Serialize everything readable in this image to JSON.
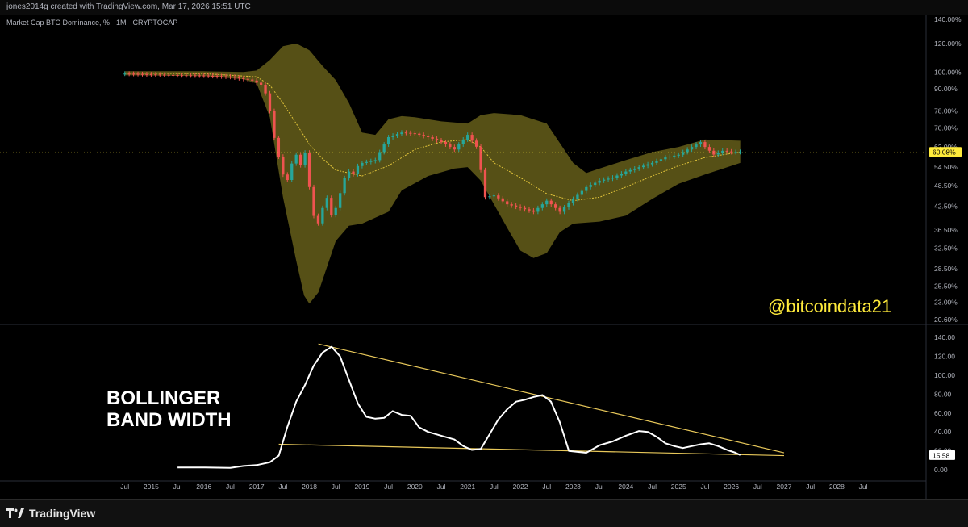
{
  "header": {
    "creator": "jones2014g created with TradingView.com, Mar 17, 2026 15:51 UTC"
  },
  "footer": {
    "brand": "TradingView",
    "logo_icon": "tradingview-logo-icon"
  },
  "chart_data": [
    {
      "type": "candlestick",
      "symbol_label": "Market Cap BTC Dominance, % · 1M · CRYPTOCAP",
      "watermark": "@bitcoindata21",
      "last_value_label": "60.08%",
      "last_value": 60.08,
      "y_scale": "log",
      "ylim": [
        20.6,
        140
      ],
      "y_ticks": [
        140,
        120,
        100,
        90,
        78,
        70,
        62,
        54.5,
        48.5,
        42.5,
        36.5,
        32.5,
        28.5,
        25.5,
        23,
        20.6
      ],
      "y_tick_labels": [
        "140.00%",
        "120.00%",
        "100.00%",
        "90.00%",
        "78.00%",
        "70.00%",
        "62.00%",
        "54.50%",
        "48.50%",
        "42.50%",
        "36.50%",
        "32.50%",
        "28.50%",
        "25.50%",
        "23.00%",
        "20.60%"
      ],
      "colors": {
        "up": "#26a69a",
        "down": "#ef5350",
        "band_fill": "#5b5417",
        "basis": "#e0c33a",
        "last_badge": "#ffeb3b"
      },
      "close": [
        {
          "t": 2014.5,
          "v": 99.0
        },
        {
          "t": 2015.0,
          "v": 98.5
        },
        {
          "t": 2015.5,
          "v": 98.0
        },
        {
          "t": 2016.0,
          "v": 97.8
        },
        {
          "t": 2016.5,
          "v": 97.0
        },
        {
          "t": 2016.9,
          "v": 95.0
        },
        {
          "t": 2017.1,
          "v": 92.0
        },
        {
          "t": 2017.2,
          "v": 85.0
        },
        {
          "t": 2017.25,
          "v": 78.0
        },
        {
          "t": 2017.33,
          "v": 66.0
        },
        {
          "t": 2017.42,
          "v": 58.0
        },
        {
          "t": 2017.5,
          "v": 52.0
        },
        {
          "t": 2017.58,
          "v": 50.0
        },
        {
          "t": 2017.67,
          "v": 56.0
        },
        {
          "t": 2017.75,
          "v": 59.0
        },
        {
          "t": 2017.83,
          "v": 55.0
        },
        {
          "t": 2017.92,
          "v": 60.0
        },
        {
          "t": 2018.0,
          "v": 48.0
        },
        {
          "t": 2018.08,
          "v": 40.0
        },
        {
          "t": 2018.17,
          "v": 38.0
        },
        {
          "t": 2018.25,
          "v": 42.0
        },
        {
          "t": 2018.33,
          "v": 45.0
        },
        {
          "t": 2018.42,
          "v": 40.0
        },
        {
          "t": 2018.5,
          "v": 42.0
        },
        {
          "t": 2018.58,
          "v": 46.0
        },
        {
          "t": 2018.67,
          "v": 51.0
        },
        {
          "t": 2018.75,
          "v": 53.0
        },
        {
          "t": 2018.83,
          "v": 52.0
        },
        {
          "t": 2018.92,
          "v": 55.0
        },
        {
          "t": 2019.0,
          "v": 56.0
        },
        {
          "t": 2019.25,
          "v": 57.0
        },
        {
          "t": 2019.5,
          "v": 66.0
        },
        {
          "t": 2019.75,
          "v": 68.0
        },
        {
          "t": 2020.0,
          "v": 67.5
        },
        {
          "t": 2020.25,
          "v": 66.0
        },
        {
          "t": 2020.5,
          "v": 64.0
        },
        {
          "t": 2020.75,
          "v": 61.0
        },
        {
          "t": 2021.0,
          "v": 67.0
        },
        {
          "t": 2021.17,
          "v": 62.0
        },
        {
          "t": 2021.33,
          "v": 45.0
        },
        {
          "t": 2021.5,
          "v": 45.5
        },
        {
          "t": 2021.75,
          "v": 43.0
        },
        {
          "t": 2022.0,
          "v": 42.0
        },
        {
          "t": 2022.25,
          "v": 41.0
        },
        {
          "t": 2022.5,
          "v": 44.0
        },
        {
          "t": 2022.75,
          "v": 41.0
        },
        {
          "t": 2023.0,
          "v": 44.5
        },
        {
          "t": 2023.25,
          "v": 48.0
        },
        {
          "t": 2023.5,
          "v": 50.0
        },
        {
          "t": 2023.75,
          "v": 51.0
        },
        {
          "t": 2024.0,
          "v": 53.0
        },
        {
          "t": 2024.25,
          "v": 54.5
        },
        {
          "t": 2024.5,
          "v": 56.0
        },
        {
          "t": 2024.75,
          "v": 58.0
        },
        {
          "t": 2025.0,
          "v": 59.0
        },
        {
          "t": 2025.25,
          "v": 62.0
        },
        {
          "t": 2025.42,
          "v": 64.0
        },
        {
          "t": 2025.5,
          "v": 62.0
        },
        {
          "t": 2025.67,
          "v": 59.0
        },
        {
          "t": 2025.83,
          "v": 60.5
        },
        {
          "t": 2026.0,
          "v": 60.0
        },
        {
          "t": 2026.17,
          "v": 60.08
        }
      ],
      "bollinger_upper": [
        {
          "t": 2014.5,
          "v": 100.5
        },
        {
          "t": 2016.0,
          "v": 100.5
        },
        {
          "t": 2016.75,
          "v": 100.0
        },
        {
          "t": 2017.0,
          "v": 101.0
        },
        {
          "t": 2017.25,
          "v": 108.0
        },
        {
          "t": 2017.5,
          "v": 118.0
        },
        {
          "t": 2017.75,
          "v": 120.0
        },
        {
          "t": 2018.0,
          "v": 115.0
        },
        {
          "t": 2018.25,
          "v": 104.0
        },
        {
          "t": 2018.5,
          "v": 95.0
        },
        {
          "t": 2018.75,
          "v": 82.0
        },
        {
          "t": 2019.0,
          "v": 68.0
        },
        {
          "t": 2019.25,
          "v": 67.0
        },
        {
          "t": 2019.5,
          "v": 74.0
        },
        {
          "t": 2019.75,
          "v": 75.5
        },
        {
          "t": 2020.0,
          "v": 75.0
        },
        {
          "t": 2020.5,
          "v": 73.0
        },
        {
          "t": 2021.0,
          "v": 72.0
        },
        {
          "t": 2021.25,
          "v": 76.0
        },
        {
          "t": 2021.5,
          "v": 77.0
        },
        {
          "t": 2022.0,
          "v": 76.0
        },
        {
          "t": 2022.5,
          "v": 72.0
        },
        {
          "t": 2023.0,
          "v": 56.0
        },
        {
          "t": 2023.25,
          "v": 52.5
        },
        {
          "t": 2023.5,
          "v": 54.0
        },
        {
          "t": 2024.0,
          "v": 57.0
        },
        {
          "t": 2024.5,
          "v": 60.0
        },
        {
          "t": 2025.0,
          "v": 62.0
        },
        {
          "t": 2025.5,
          "v": 65.0
        },
        {
          "t": 2026.17,
          "v": 64.5
        }
      ],
      "bollinger_lower": [
        {
          "t": 2014.5,
          "v": 98.0
        },
        {
          "t": 2016.0,
          "v": 97.5
        },
        {
          "t": 2016.75,
          "v": 95.5
        },
        {
          "t": 2017.0,
          "v": 93.0
        },
        {
          "t": 2017.25,
          "v": 75.0
        },
        {
          "t": 2017.5,
          "v": 45.0
        },
        {
          "t": 2017.75,
          "v": 30.0
        },
        {
          "t": 2017.9,
          "v": 24.0
        },
        {
          "t": 2018.0,
          "v": 22.8
        },
        {
          "t": 2018.17,
          "v": 24.5
        },
        {
          "t": 2018.5,
          "v": 34.0
        },
        {
          "t": 2018.75,
          "v": 37.5
        },
        {
          "t": 2019.0,
          "v": 38.0
        },
        {
          "t": 2019.5,
          "v": 41.0
        },
        {
          "t": 2019.75,
          "v": 47.0
        },
        {
          "t": 2020.25,
          "v": 51.5
        },
        {
          "t": 2020.75,
          "v": 54.0
        },
        {
          "t": 2021.0,
          "v": 54.5
        },
        {
          "t": 2021.25,
          "v": 50.0
        },
        {
          "t": 2021.75,
          "v": 37.0
        },
        {
          "t": 2022.0,
          "v": 32.0
        },
        {
          "t": 2022.25,
          "v": 30.5
        },
        {
          "t": 2022.5,
          "v": 31.5
        },
        {
          "t": 2022.75,
          "v": 36.0
        },
        {
          "t": 2023.0,
          "v": 38.0
        },
        {
          "t": 2023.5,
          "v": 38.5
        },
        {
          "t": 2024.0,
          "v": 40.0
        },
        {
          "t": 2024.5,
          "v": 44.5
        },
        {
          "t": 2025.0,
          "v": 49.0
        },
        {
          "t": 2025.5,
          "v": 52.0
        },
        {
          "t": 2026.17,
          "v": 56.0
        }
      ],
      "bollinger_basis": [
        {
          "t": 2014.5,
          "v": 99.3
        },
        {
          "t": 2016.0,
          "v": 99.0
        },
        {
          "t": 2017.0,
          "v": 97.0
        },
        {
          "t": 2017.25,
          "v": 92.0
        },
        {
          "t": 2017.5,
          "v": 82.0
        },
        {
          "t": 2017.75,
          "v": 72.0
        },
        {
          "t": 2018.0,
          "v": 63.0
        },
        {
          "t": 2018.25,
          "v": 57.5
        },
        {
          "t": 2018.5,
          "v": 53.5
        },
        {
          "t": 2018.75,
          "v": 52.5
        },
        {
          "t": 2019.0,
          "v": 51.5
        },
        {
          "t": 2019.5,
          "v": 55.0
        },
        {
          "t": 2020.0,
          "v": 61.0
        },
        {
          "t": 2020.5,
          "v": 64.0
        },
        {
          "t": 2021.0,
          "v": 65.0
        },
        {
          "t": 2021.25,
          "v": 62.0
        },
        {
          "t": 2021.5,
          "v": 56.0
        },
        {
          "t": 2022.0,
          "v": 51.0
        },
        {
          "t": 2022.5,
          "v": 46.0
        },
        {
          "t": 2023.0,
          "v": 44.0
        },
        {
          "t": 2023.5,
          "v": 45.0
        },
        {
          "t": 2024.0,
          "v": 48.0
        },
        {
          "t": 2024.5,
          "v": 51.5
        },
        {
          "t": 2025.0,
          "v": 55.0
        },
        {
          "t": 2025.5,
          "v": 58.0
        },
        {
          "t": 2026.17,
          "v": 60.0
        }
      ]
    },
    {
      "type": "line",
      "title": "BOLLINGER\nBAND WIDTH",
      "last_value_label": "15.58",
      "last_value": 15.58,
      "ylim": [
        -5,
        140
      ],
      "y_ticks": [
        140,
        120,
        100,
        80,
        60,
        40,
        20,
        0
      ],
      "y_tick_labels": [
        "140.00",
        "120.00",
        "100.00",
        "80.00",
        "60.00",
        "40.00",
        "20.00",
        "0.00"
      ],
      "colors": {
        "line": "#ffffff",
        "trendline": "#e8c85a"
      },
      "series": [
        {
          "t": 2015.5,
          "v": 2.5
        },
        {
          "t": 2016.0,
          "v": 2.5
        },
        {
          "t": 2016.5,
          "v": 2.0
        },
        {
          "t": 2016.75,
          "v": 4.0
        },
        {
          "t": 2017.0,
          "v": 5.0
        },
        {
          "t": 2017.25,
          "v": 8.0
        },
        {
          "t": 2017.42,
          "v": 15.0
        },
        {
          "t": 2017.58,
          "v": 45.0
        },
        {
          "t": 2017.75,
          "v": 72.0
        },
        {
          "t": 2017.92,
          "v": 90.0
        },
        {
          "t": 2018.08,
          "v": 110.0
        },
        {
          "t": 2018.25,
          "v": 124.0
        },
        {
          "t": 2018.42,
          "v": 130.0
        },
        {
          "t": 2018.58,
          "v": 120.0
        },
        {
          "t": 2018.75,
          "v": 95.0
        },
        {
          "t": 2018.92,
          "v": 70.0
        },
        {
          "t": 2019.08,
          "v": 56.0
        },
        {
          "t": 2019.25,
          "v": 54.0
        },
        {
          "t": 2019.42,
          "v": 55.0
        },
        {
          "t": 2019.58,
          "v": 62.0
        },
        {
          "t": 2019.75,
          "v": 58.0
        },
        {
          "t": 2019.92,
          "v": 57.0
        },
        {
          "t": 2020.08,
          "v": 45.0
        },
        {
          "t": 2020.25,
          "v": 40.0
        },
        {
          "t": 2020.5,
          "v": 36.0
        },
        {
          "t": 2020.75,
          "v": 32.0
        },
        {
          "t": 2020.92,
          "v": 25.0
        },
        {
          "t": 2021.08,
          "v": 21.0
        },
        {
          "t": 2021.25,
          "v": 22.0
        },
        {
          "t": 2021.42,
          "v": 38.0
        },
        {
          "t": 2021.58,
          "v": 53.0
        },
        {
          "t": 2021.75,
          "v": 64.0
        },
        {
          "t": 2021.92,
          "v": 72.0
        },
        {
          "t": 2022.08,
          "v": 74.0
        },
        {
          "t": 2022.25,
          "v": 77.0
        },
        {
          "t": 2022.42,
          "v": 79.0
        },
        {
          "t": 2022.58,
          "v": 72.0
        },
        {
          "t": 2022.75,
          "v": 50.0
        },
        {
          "t": 2022.92,
          "v": 20.0
        },
        {
          "t": 2023.08,
          "v": 19.0
        },
        {
          "t": 2023.25,
          "v": 18.0
        },
        {
          "t": 2023.5,
          "v": 26.0
        },
        {
          "t": 2023.75,
          "v": 30.0
        },
        {
          "t": 2024.0,
          "v": 36.0
        },
        {
          "t": 2024.25,
          "v": 41.0
        },
        {
          "t": 2024.42,
          "v": 40.0
        },
        {
          "t": 2024.58,
          "v": 35.0
        },
        {
          "t": 2024.75,
          "v": 28.0
        },
        {
          "t": 2024.92,
          "v": 25.0
        },
        {
          "t": 2025.08,
          "v": 23.0
        },
        {
          "t": 2025.25,
          "v": 25.0
        },
        {
          "t": 2025.42,
          "v": 27.0
        },
        {
          "t": 2025.58,
          "v": 28.0
        },
        {
          "t": 2025.75,
          "v": 25.0
        },
        {
          "t": 2025.92,
          "v": 21.0
        },
        {
          "t": 2026.08,
          "v": 18.0
        },
        {
          "t": 2026.17,
          "v": 15.58
        }
      ],
      "trendlines": [
        {
          "from": {
            "t": 2018.17,
            "v": 133.0
          },
          "to": {
            "t": 2027.0,
            "v": 18.0
          }
        },
        {
          "from": {
            "t": 2017.42,
            "v": 27.0
          },
          "to": {
            "t": 2027.0,
            "v": 15.0
          }
        }
      ]
    }
  ],
  "x_axis": {
    "range": [
      2014.0,
      2029.6
    ],
    "ticks": [
      {
        "t": 2014.5,
        "label": "Jul"
      },
      {
        "t": 2015.0,
        "label": "2015"
      },
      {
        "t": 2015.5,
        "label": "Jul"
      },
      {
        "t": 2016.0,
        "label": "2016"
      },
      {
        "t": 2016.5,
        "label": "Jul"
      },
      {
        "t": 2017.0,
        "label": "2017"
      },
      {
        "t": 2017.5,
        "label": "Jul"
      },
      {
        "t": 2018.0,
        "label": "2018"
      },
      {
        "t": 2018.5,
        "label": "Jul"
      },
      {
        "t": 2019.0,
        "label": "2019"
      },
      {
        "t": 2019.5,
        "label": "Jul"
      },
      {
        "t": 2020.0,
        "label": "2020"
      },
      {
        "t": 2020.5,
        "label": "Jul"
      },
      {
        "t": 2021.0,
        "label": "2021"
      },
      {
        "t": 2021.5,
        "label": "Jul"
      },
      {
        "t": 2022.0,
        "label": "2022"
      },
      {
        "t": 2022.5,
        "label": "Jul"
      },
      {
        "t": 2023.0,
        "label": "2023"
      },
      {
        "t": 2023.5,
        "label": "Jul"
      },
      {
        "t": 2024.0,
        "label": "2024"
      },
      {
        "t": 2024.5,
        "label": "Jul"
      },
      {
        "t": 2025.0,
        "label": "2025"
      },
      {
        "t": 2025.5,
        "label": "Jul"
      },
      {
        "t": 2026.0,
        "label": "2026"
      },
      {
        "t": 2026.5,
        "label": "Jul"
      },
      {
        "t": 2027.0,
        "label": "2027"
      },
      {
        "t": 2027.5,
        "label": "Jul"
      },
      {
        "t": 2028.0,
        "label": "2028"
      },
      {
        "t": 2028.5,
        "label": "Jul"
      }
    ]
  }
}
